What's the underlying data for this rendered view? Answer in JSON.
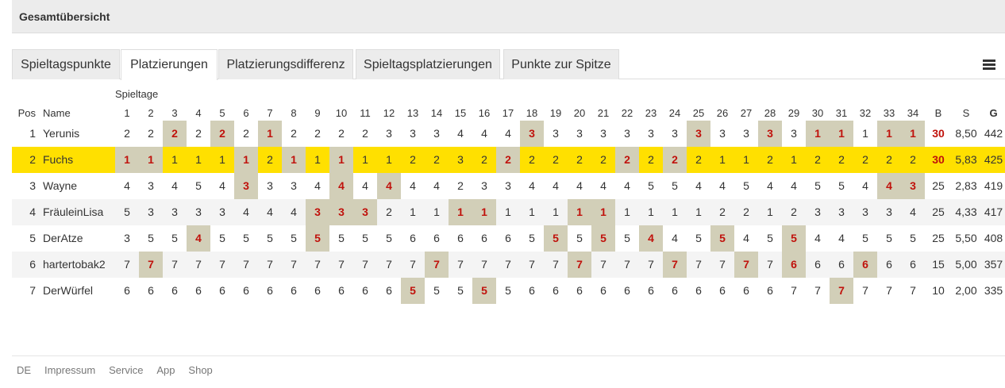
{
  "panel": {
    "title": "Gesamtübersicht"
  },
  "tabs": [
    {
      "label": "Spieltagspunkte",
      "active": false
    },
    {
      "label": "Platzierungen",
      "active": true
    },
    {
      "label": "Platzierungsdifferenz",
      "active": false
    },
    {
      "label": "Spieltagsplatzierungen",
      "active": false
    },
    {
      "label": "Punkte zur Spitze",
      "active": false
    }
  ],
  "menu_icon": "hamburger-menu-icon",
  "table": {
    "group_label": "Spieltage",
    "headers": {
      "pos": "Pos",
      "name": "Name",
      "b": "B",
      "s": "S",
      "g": "G"
    },
    "matchdays": [
      "1",
      "2",
      "3",
      "4",
      "5",
      "6",
      "7",
      "8",
      "9",
      "10",
      "11",
      "12",
      "13",
      "14",
      "15",
      "16",
      "17",
      "18",
      "19",
      "20",
      "21",
      "22",
      "23",
      "24",
      "25",
      "26",
      "27",
      "28",
      "29",
      "30",
      "31",
      "32",
      "33",
      "34"
    ],
    "rows": [
      {
        "pos": "1",
        "name": "Yerunis",
        "values": [
          "2",
          "2",
          "2",
          "2",
          "2",
          "2",
          "1",
          "2",
          "2",
          "2",
          "2",
          "3",
          "3",
          "3",
          "4",
          "4",
          "4",
          "3",
          "3",
          "3",
          "3",
          "3",
          "3",
          "3",
          "3",
          "3",
          "3",
          "3",
          "3",
          "1",
          "1",
          "1",
          "1",
          "1"
        ],
        "best": [
          2,
          4,
          6,
          17,
          24,
          27,
          29,
          30,
          32,
          33
        ],
        "b": "30",
        "b_bold": true,
        "s": "8,50",
        "g": "442",
        "highlight": false
      },
      {
        "pos": "2",
        "name": "Fuchs",
        "values": [
          "1",
          "1",
          "1",
          "1",
          "1",
          "1",
          "2",
          "1",
          "1",
          "1",
          "1",
          "1",
          "2",
          "2",
          "3",
          "2",
          "2",
          "2",
          "2",
          "2",
          "2",
          "2",
          "2",
          "2",
          "2",
          "1",
          "1",
          "2",
          "1",
          "2",
          "2",
          "2",
          "2",
          "2"
        ],
        "best": [
          0,
          1,
          5,
          7,
          9,
          16,
          21,
          23
        ],
        "b": "30",
        "b_bold": true,
        "s": "5,83",
        "g": "425",
        "highlight": true
      },
      {
        "pos": "3",
        "name": "Wayne",
        "values": [
          "4",
          "3",
          "4",
          "5",
          "4",
          "3",
          "3",
          "3",
          "4",
          "4",
          "4",
          "4",
          "4",
          "4",
          "2",
          "3",
          "3",
          "4",
          "4",
          "4",
          "4",
          "4",
          "5",
          "5",
          "4",
          "4",
          "5",
          "4",
          "4",
          "5",
          "5",
          "4",
          "4",
          "3"
        ],
        "best": [
          5,
          9,
          11,
          32,
          33
        ],
        "b": "25",
        "b_bold": false,
        "s": "2,83",
        "g": "419",
        "highlight": false
      },
      {
        "pos": "4",
        "name": "FräuleinLisa",
        "values": [
          "5",
          "3",
          "3",
          "3",
          "3",
          "4",
          "4",
          "4",
          "3",
          "3",
          "3",
          "2",
          "1",
          "1",
          "1",
          "1",
          "1",
          "1",
          "1",
          "1",
          "1",
          "1",
          "1",
          "1",
          "1",
          "2",
          "2",
          "1",
          "2",
          "3",
          "3",
          "3",
          "3",
          "4"
        ],
        "best": [
          8,
          9,
          10,
          14,
          15,
          19,
          20
        ],
        "b": "25",
        "b_bold": false,
        "s": "4,33",
        "g": "417",
        "highlight": false
      },
      {
        "pos": "5",
        "name": "DerAtze",
        "values": [
          "3",
          "5",
          "5",
          "4",
          "5",
          "5",
          "5",
          "5",
          "5",
          "5",
          "5",
          "5",
          "6",
          "6",
          "6",
          "6",
          "6",
          "5",
          "5",
          "5",
          "5",
          "5",
          "4",
          "4",
          "5",
          "5",
          "4",
          "5",
          "5",
          "4",
          "4",
          "5",
          "5",
          "5"
        ],
        "best": [
          3,
          8,
          18,
          20,
          22,
          25,
          28
        ],
        "b": "25",
        "b_bold": false,
        "s": "5,50",
        "g": "408",
        "highlight": false
      },
      {
        "pos": "6",
        "name": "hartertobak2",
        "values": [
          "7",
          "7",
          "7",
          "7",
          "7",
          "7",
          "7",
          "7",
          "7",
          "7",
          "7",
          "7",
          "7",
          "7",
          "7",
          "7",
          "7",
          "7",
          "7",
          "7",
          "7",
          "7",
          "7",
          "7",
          "7",
          "7",
          "7",
          "7",
          "6",
          "6",
          "6",
          "6",
          "6",
          "6"
        ],
        "best": [
          1,
          13,
          19,
          23,
          26,
          28,
          31
        ],
        "b": "15",
        "b_bold": false,
        "s": "5,00",
        "g": "357",
        "highlight": false
      },
      {
        "pos": "7",
        "name": "DerWürfel",
        "values": [
          "6",
          "6",
          "6",
          "6",
          "6",
          "6",
          "6",
          "6",
          "6",
          "6",
          "6",
          "6",
          "5",
          "5",
          "5",
          "5",
          "5",
          "6",
          "6",
          "6",
          "6",
          "6",
          "6",
          "6",
          "6",
          "6",
          "6",
          "6",
          "7",
          "7",
          "7",
          "7",
          "7",
          "7"
        ],
        "best": [
          12,
          15,
          30
        ],
        "b": "10",
        "b_bold": false,
        "s": "2,00",
        "g": "335",
        "highlight": false
      }
    ]
  },
  "footer": {
    "links": [
      "DE",
      "Impressum",
      "Service",
      "App",
      "Shop"
    ]
  }
}
